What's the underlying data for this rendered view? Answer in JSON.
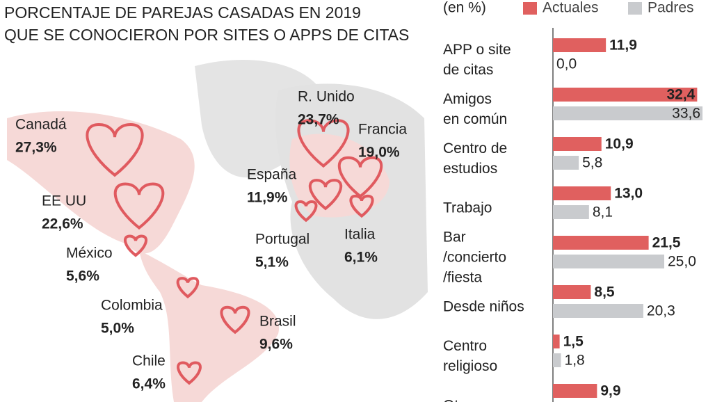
{
  "title": [
    "PORCENTAJE DE PAREJAS CASADAS EN 2019",
    "QUE SE CONOCIERON POR SITES O APPS DE CITAS"
  ],
  "map": {
    "regions": [
      {
        "name": "Canadá",
        "value": 27.3,
        "value_label": "27,3%"
      },
      {
        "name": "EE UU",
        "value": 22.6,
        "value_label": "22,6%"
      },
      {
        "name": "México",
        "value": 5.6,
        "value_label": "5,6%"
      },
      {
        "name": "Colombia",
        "value": 5.0,
        "value_label": "5,0%"
      },
      {
        "name": "Chile",
        "value": 6.4,
        "value_label": "6,4%"
      },
      {
        "name": "Brasil",
        "value": 9.6,
        "value_label": "9,6%"
      },
      {
        "name": "R. Unido",
        "value": 23.7,
        "value_label": "23,7%"
      },
      {
        "name": "Francia",
        "value": 19.0,
        "value_label": "19,0%"
      },
      {
        "name": "España",
        "value": 11.9,
        "value_label": "11,9%"
      },
      {
        "name": "Portugal",
        "value": 5.1,
        "value_label": "5,1%"
      },
      {
        "name": "Italia",
        "value": 6.1,
        "value_label": "6,1%"
      }
    ]
  },
  "chart_data": {
    "type": "bar",
    "orientation": "horizontal",
    "unit_label": "(en %)",
    "categories": [
      [
        "APP o site",
        "de citas"
      ],
      [
        "Amigos",
        "en común"
      ],
      [
        "Centro de",
        "estudios"
      ],
      [
        "Trabajo"
      ],
      [
        "Bar",
        "/concierto",
        "/fiesta"
      ],
      [
        "Desde niños"
      ],
      [
        "Centro",
        "religioso"
      ],
      [
        "Otro"
      ]
    ],
    "series": [
      {
        "name": "Actuales",
        "color": "#e0605f",
        "values": [
          11.9,
          32.4,
          10.9,
          13.0,
          21.5,
          8.5,
          1.5,
          9.9
        ],
        "value_labels": [
          "11,9",
          "32,4",
          "10,9",
          "13,0",
          "21,5",
          "8,5",
          "1,5",
          "9,9"
        ]
      },
      {
        "name": "Padres",
        "color": "#c9cbce",
        "values": [
          0.0,
          33.6,
          5.8,
          8.1,
          25.0,
          20.3,
          1.8,
          null
        ],
        "value_labels": [
          "0,0",
          "33,6",
          "5,8",
          "8,1",
          "25,0",
          "20,3",
          "1,8",
          null
        ]
      }
    ],
    "xlim": [
      0,
      35
    ]
  }
}
